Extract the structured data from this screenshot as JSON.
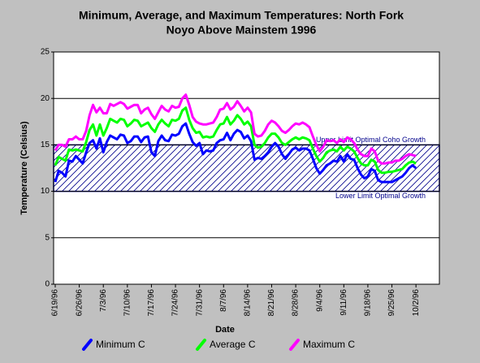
{
  "chart_data": {
    "type": "line",
    "title": "Minimum, Average, and Maximum Temperatures:  North Fork",
    "subtitle": "Noyo Above Mainstem 1996",
    "x_label": "Date",
    "y_label": "Temperature (Celsius)",
    "ylim": [
      0,
      25
    ],
    "yticks": [
      0,
      5,
      10,
      15,
      20,
      25
    ],
    "grid": true,
    "legend": "bottom",
    "annotations": [
      {
        "text": "Upper Limit Optimal Coho Growth",
        "y": 15
      },
      {
        "text": "Lower Limit Optimal Growth",
        "y": 10
      }
    ],
    "categories": [
      "6/19/96",
      null,
      null,
      null,
      null,
      null,
      null,
      "6/26/96",
      null,
      null,
      null,
      null,
      null,
      null,
      "7/3/96",
      null,
      null,
      null,
      null,
      null,
      null,
      "7/10/96",
      null,
      null,
      null,
      null,
      null,
      null,
      "7/17/96",
      null,
      null,
      null,
      null,
      null,
      null,
      "7/24/96",
      null,
      null,
      null,
      null,
      null,
      null,
      "7/31/96",
      null,
      null,
      null,
      null,
      null,
      null,
      "8/7/96",
      null,
      null,
      null,
      null,
      null,
      null,
      "8/14/96",
      null,
      null,
      null,
      null,
      null,
      null,
      "8/21/96",
      null,
      null,
      null,
      null,
      null,
      null,
      "8/28/96",
      null,
      null,
      null,
      null,
      null,
      null,
      "9/4/96",
      null,
      null,
      null,
      null,
      null,
      null,
      "9/11/96",
      null,
      null,
      null,
      null,
      null,
      null,
      "9/18/96",
      null,
      null,
      null,
      null,
      null,
      null,
      "9/25/96",
      null,
      null,
      null,
      null,
      null,
      null,
      "10/2/96"
    ],
    "series": [
      {
        "name": "Minimum C",
        "color": "#0000ff",
        "values": [
          11,
          12.2,
          12,
          11.6,
          13.3,
          13.2,
          13.8,
          13.4,
          13,
          14.2,
          15.2,
          15.5,
          14.6,
          15.7,
          14.2,
          15.3,
          16,
          15.8,
          15.6,
          16.1,
          16,
          15.2,
          15.4,
          15.9,
          15.9,
          15.3,
          15.8,
          15.9,
          14.2,
          13.8,
          15.4,
          16,
          15.5,
          15.4,
          16.1,
          16,
          16.2,
          17,
          17.3,
          16.2,
          15.3,
          14.9,
          15.2,
          14,
          14.4,
          14.3,
          14.4,
          15.2,
          15.5,
          15.6,
          16.3,
          15.5,
          16.2,
          16.6,
          16.4,
          15.7,
          16,
          15.4,
          13.4,
          13.6,
          13.5,
          13.8,
          14.2,
          14.8,
          15.2,
          14.8,
          14,
          13.5,
          14,
          14.5,
          14.7,
          14.4,
          14.6,
          14.6,
          14.4,
          13.5,
          12.5,
          11.9,
          12.3,
          12.8,
          13,
          13.3,
          13.2,
          13.8,
          13.2,
          14,
          13.5,
          13.4,
          12.5,
          11.8,
          11.4,
          11.6,
          12.4,
          12.2,
          11.2,
          11,
          11,
          11,
          11,
          11.2,
          11.4,
          11.6,
          12,
          12.5,
          12.8,
          12.5
        ]
      },
      {
        "name": "Average C",
        "color": "#00ff00",
        "values": [
          12.8,
          13.7,
          13.5,
          13.3,
          14.5,
          14.4,
          14.5,
          14.4,
          14.3,
          15.3,
          16.6,
          17.2,
          16,
          17.2,
          16,
          16.8,
          17.8,
          17.6,
          17.4,
          17.8,
          17.7,
          17,
          17.3,
          17.7,
          17.6,
          17,
          17.2,
          17.4,
          16.8,
          16.4,
          17.2,
          17.7,
          17.3,
          17,
          17.7,
          17.6,
          17.8,
          18.7,
          19,
          17.7,
          16.8,
          16.3,
          16.4,
          15.8,
          15.9,
          15.8,
          15.9,
          16.6,
          17.2,
          17.3,
          18,
          17.2,
          17.6,
          18.2,
          17.8,
          17.2,
          17.5,
          17,
          15,
          14.7,
          14.8,
          15.2,
          15.8,
          16.2,
          16.2,
          15.8,
          15.2,
          15,
          15.3,
          15.6,
          15.8,
          15.6,
          15.8,
          15.7,
          15.5,
          14.6,
          13.8,
          13.2,
          13.6,
          14.2,
          14.4,
          14.5,
          14.3,
          14.8,
          14.4,
          14.8,
          14.6,
          14.3,
          13.6,
          13,
          12.8,
          12.8,
          13.4,
          13.2,
          12.3,
          12,
          12,
          12.1,
          12.1,
          12.2,
          12.3,
          12.4,
          12.8,
          13.1,
          13.2,
          13
        ]
      },
      {
        "name": "Maximum C",
        "color": "#ff00ff",
        "values": [
          14.4,
          15,
          15,
          14.8,
          15.6,
          15.6,
          15.9,
          15.6,
          15.6,
          16.5,
          18.2,
          19.3,
          18.5,
          19,
          18.4,
          18.4,
          19.4,
          19.2,
          19.4,
          19.6,
          19.4,
          18.9,
          19.1,
          19.3,
          19.3,
          18.4,
          18.8,
          19,
          18.3,
          17.8,
          18.5,
          19.2,
          18.8,
          18.6,
          19.2,
          19,
          19.1,
          20,
          20.4,
          19.3,
          18,
          17.5,
          17.3,
          17.2,
          17.2,
          17.3,
          17.4,
          18,
          18.8,
          18.9,
          19.5,
          18.8,
          19.1,
          19.7,
          19.2,
          18.6,
          19,
          18.5,
          16.2,
          15.9,
          16,
          16.5,
          17.2,
          17.6,
          17.4,
          17,
          16.5,
          16.3,
          16.6,
          17,
          17.3,
          17.2,
          17.4,
          17.2,
          16.9,
          15.9,
          15,
          14.3,
          14.8,
          15.5,
          15.4,
          15.5,
          15.2,
          15.6,
          15.3,
          15.8,
          15.6,
          15.2,
          14.5,
          14,
          13.8,
          13.8,
          14.6,
          14.3,
          13.3,
          13,
          13,
          13.1,
          13.1,
          13.3,
          13.3,
          13.5,
          13.8,
          14,
          13.9,
          13.8
        ]
      }
    ]
  }
}
